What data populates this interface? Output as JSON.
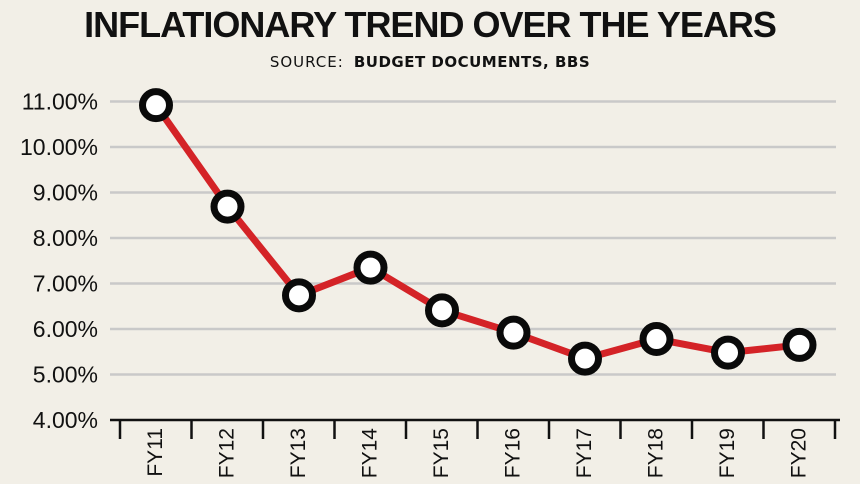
{
  "chart_data": {
    "type": "line",
    "title": "INFLATIONARY TREND OVER THE YEARS",
    "source_prefix": "SOURCE:",
    "source_value": "BUDGET DOCUMENTS, BBS",
    "categories": [
      "FY11",
      "FY12",
      "FY13",
      "FY14",
      "FY15",
      "FY16",
      "FY17",
      "FY18",
      "FY19",
      "FY20"
    ],
    "series": [
      {
        "values": [
          10.92,
          8.69,
          6.74,
          7.35,
          6.41,
          5.92,
          5.35,
          5.78,
          5.48,
          5.65
        ]
      }
    ],
    "yticks": [
      "4.00%",
      "5.00%",
      "6.00%",
      "7.00%",
      "8.00%",
      "9.00%",
      "10.00%",
      "11.00%"
    ],
    "ylim": [
      4,
      11
    ],
    "grid": true,
    "line_color": "#d42327",
    "marker_outline": "#0a0a0a",
    "marker_fill": "#ffffff",
    "grid_color": "#c9c9c9"
  }
}
